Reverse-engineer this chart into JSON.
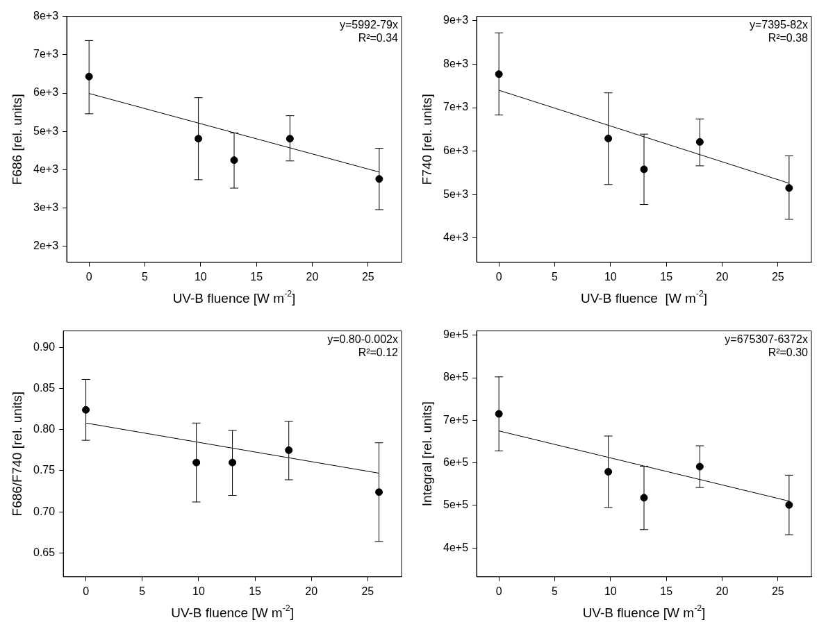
{
  "chart_data": [
    {
      "type": "scatter",
      "xlabel": "UV-B fluence [W m$^{-2}$]",
      "ylabel": "F686 [rel. units]",
      "annotations": [
        "y=5992-79x",
        "R²=0.34"
      ],
      "xlim": [
        -2,
        28
      ],
      "xticks": [
        0,
        5,
        10,
        15,
        20,
        25
      ],
      "ylim": [
        1586,
        8000
      ],
      "yticks": [
        {
          "value": 2000,
          "label": "2e+3"
        },
        {
          "value": 3000,
          "label": "3e+3"
        },
        {
          "value": 4000,
          "label": "4e+3"
        },
        {
          "value": 5000,
          "label": "5e+3"
        },
        {
          "value": 6000,
          "label": "6e+3"
        },
        {
          "value": 7000,
          "label": "7e+3"
        },
        {
          "value": 8000,
          "label": "8e+3"
        }
      ],
      "series": [
        {
          "type": "scatter",
          "marker": "circle",
          "color": "#000000",
          "x": [
            0,
            9.8,
            13,
            18,
            26
          ],
          "values": [
            6430,
            4810,
            4250,
            4810,
            3760
          ],
          "errors": [
            [
              5460,
              7370
            ],
            [
              3740,
              5880
            ],
            [
              3520,
              4960
            ],
            [
              4230,
              5410
            ],
            [
              2960,
              4560
            ]
          ]
        },
        {
          "type": "line",
          "marker": "none",
          "color": "#000000",
          "x": [
            0,
            26
          ],
          "values": [
            5990,
            3940
          ]
        }
      ]
    },
    {
      "type": "scatter",
      "xlabel": "UV-B fluence  [W m$^{-2}$]",
      "ylabel": "F740 [rel. units]",
      "annotations": [
        "y=7395-82x",
        "R²=0.38"
      ],
      "xlim": [
        -2,
        28
      ],
      "xticks": [
        0,
        5,
        10,
        15,
        20,
        25
      ],
      "ylim": [
        3440,
        9100
      ],
      "yticks": [
        {
          "value": 4000,
          "label": "4e+3"
        },
        {
          "value": 5000,
          "label": "5e+3"
        },
        {
          "value": 6000,
          "label": "6e+3"
        },
        {
          "value": 7000,
          "label": "7e+3"
        },
        {
          "value": 8000,
          "label": "8e+3"
        },
        {
          "value": 9000,
          "label": "9e+3"
        }
      ],
      "series": [
        {
          "type": "scatter",
          "marker": "circle",
          "color": "#000000",
          "x": [
            0,
            9.8,
            13,
            18,
            26
          ],
          "values": [
            7770,
            6290,
            5580,
            6210,
            5150
          ],
          "errors": [
            [
              6830,
              8720
            ],
            [
              5230,
              7340
            ],
            [
              4770,
              6390
            ],
            [
              5660,
              6740
            ],
            [
              4430,
              5890
            ]
          ]
        },
        {
          "type": "line",
          "marker": "none",
          "color": "#000000",
          "x": [
            0,
            26
          ],
          "values": [
            7400,
            5260
          ]
        }
      ]
    },
    {
      "type": "scatter",
      "xlabel": "UV-B fluence [W m$^{-2}$]",
      "ylabel": "F686/F740 [rel. units]",
      "annotations": [
        "y=0.80-0.002x",
        "R²=0.12"
      ],
      "xlim": [
        -2,
        28
      ],
      "xticks": [
        0,
        5,
        10,
        15,
        20,
        25
      ],
      "ylim": [
        0.621,
        0.92
      ],
      "yticks": [
        {
          "value": 0.65,
          "label": "0.65"
        },
        {
          "value": 0.7,
          "label": "0.70"
        },
        {
          "value": 0.75,
          "label": "0.75"
        },
        {
          "value": 0.8,
          "label": "0.80"
        },
        {
          "value": 0.85,
          "label": "0.85"
        },
        {
          "value": 0.9,
          "label": "0.90"
        }
      ],
      "series": [
        {
          "type": "scatter",
          "marker": "circle",
          "color": "#000000",
          "x": [
            0,
            9.8,
            13,
            18,
            26
          ],
          "values": [
            0.824,
            0.76,
            0.76,
            0.775,
            0.724
          ],
          "errors": [
            [
              0.787,
              0.861
            ],
            [
              0.712,
              0.808
            ],
            [
              0.72,
              0.799
            ],
            [
              0.739,
              0.81
            ],
            [
              0.664,
              0.784
            ]
          ]
        },
        {
          "type": "line",
          "marker": "none",
          "color": "#000000",
          "x": [
            0,
            26
          ],
          "values": [
            0.808,
            0.747
          ]
        }
      ]
    },
    {
      "type": "scatter",
      "xlabel": "UV-B fluence [W m$^{-2}$]",
      "ylabel": "Integral [rel. units]",
      "annotations": [
        "y=675307-6372x",
        "R²=0.30"
      ],
      "xlim": [
        -2,
        28
      ],
      "xticks": [
        0,
        5,
        10,
        15,
        20,
        25
      ],
      "ylim": [
        332000,
        910000
      ],
      "yticks": [
        {
          "value": 400000,
          "label": "4e+5"
        },
        {
          "value": 500000,
          "label": "5e+5"
        },
        {
          "value": 600000,
          "label": "6e+5"
        },
        {
          "value": 700000,
          "label": "7e+5"
        },
        {
          "value": 800000,
          "label": "8e+5"
        },
        {
          "value": 900000,
          "label": "9e+5"
        }
      ],
      "series": [
        {
          "type": "scatter",
          "marker": "circle",
          "color": "#000000",
          "x": [
            0,
            9.8,
            13,
            18,
            26
          ],
          "values": [
            715000,
            579000,
            518000,
            591000,
            501000
          ],
          "errors": [
            [
              628000,
              802000
            ],
            [
              495000,
              663000
            ],
            [
              443000,
              592000
            ],
            [
              542000,
              640000
            ],
            [
              431000,
              571000
            ]
          ]
        },
        {
          "type": "line",
          "marker": "none",
          "color": "#000000",
          "x": [
            0,
            26
          ],
          "values": [
            675000,
            510000
          ]
        }
      ]
    }
  ]
}
